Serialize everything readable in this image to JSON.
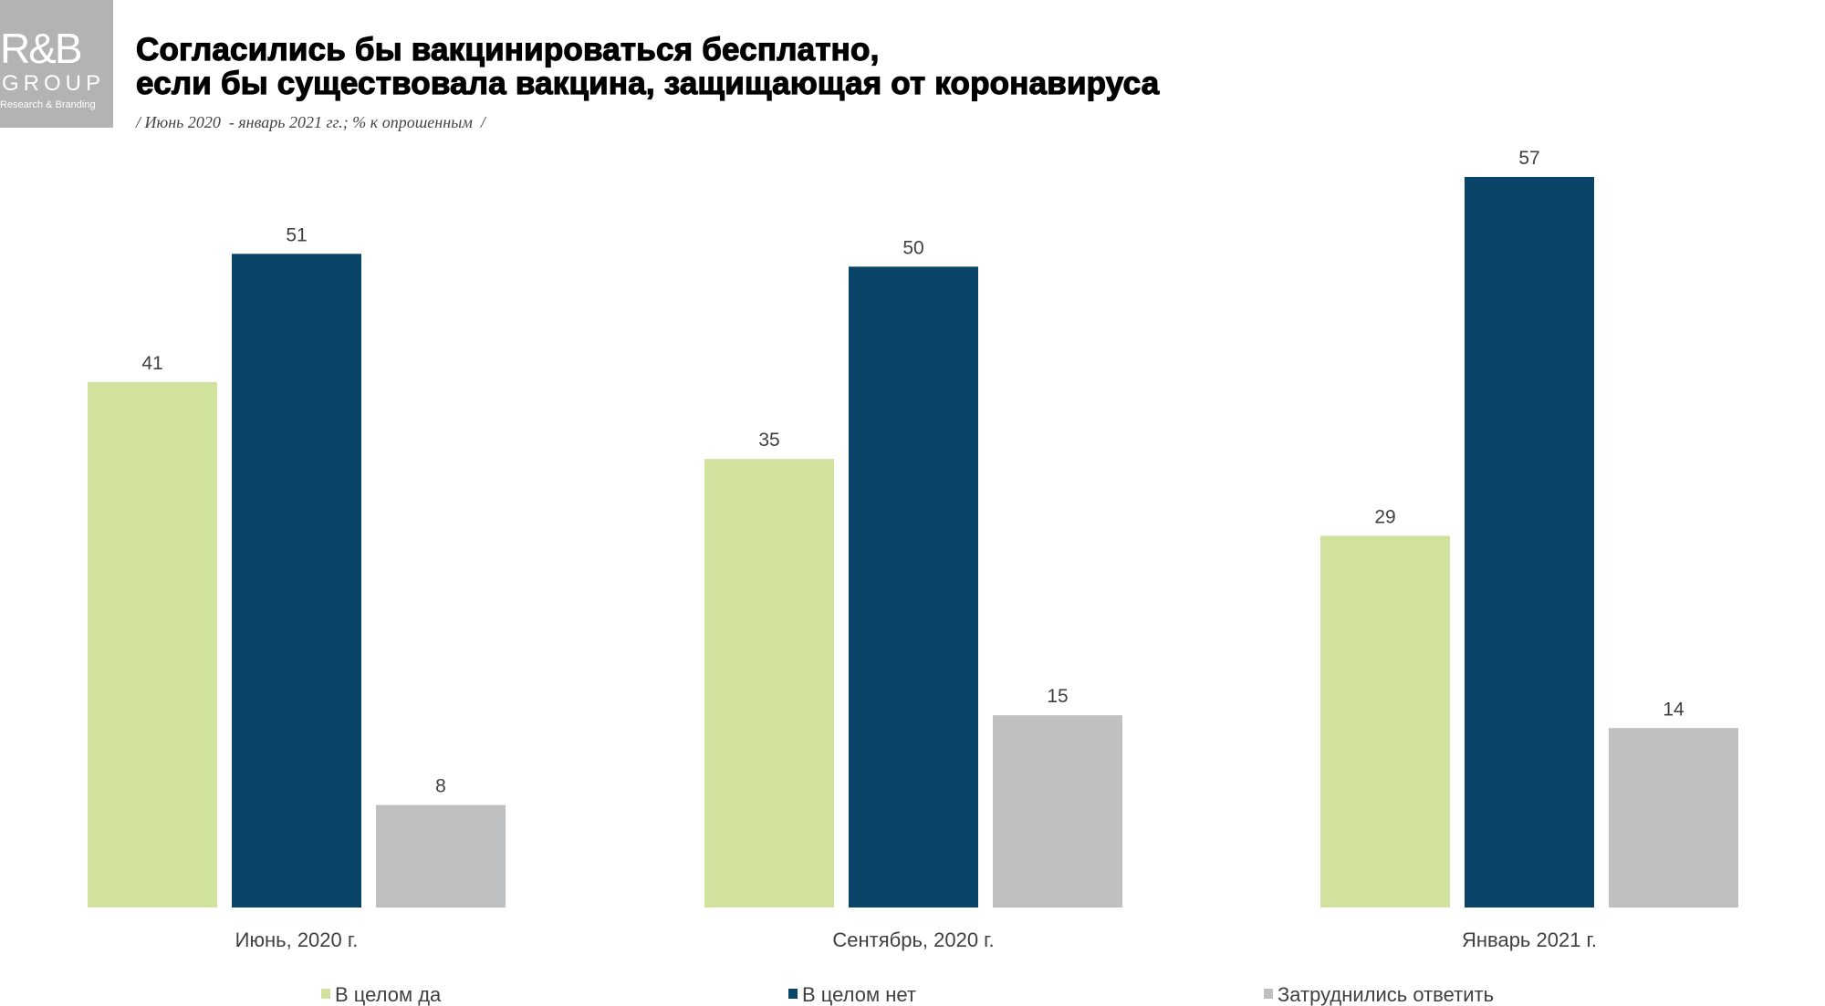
{
  "logo": {
    "line1": "R&B",
    "line2": "GROUP",
    "line3": "Research & Branding"
  },
  "title_line1": "Согласились бы вакцинироваться бесплатно,",
  "title_line2": "если бы существовала вакцина, защищающая от коронавируса",
  "subtitle": "/ Июнь 2020  - январь 2021 гг.; % к опрошенным  /",
  "chart_data": {
    "type": "bar",
    "categories": [
      "Июнь, 2020 г.",
      "Сентябрь, 2020 г.",
      "Январь 2021 г."
    ],
    "series": [
      {
        "name": "В целом да",
        "color": "#d0e29e",
        "values": [
          41,
          35,
          29
        ]
      },
      {
        "name": "В целом нет",
        "color": "#0a4569",
        "values": [
          51,
          50,
          57
        ]
      },
      {
        "name": "Затруднились ответить",
        "color": "#bfc0c2",
        "values": [
          8,
          15,
          14
        ]
      }
    ],
    "ylim": [
      0,
      57
    ],
    "grid": false,
    "legend": "bottom",
    "data_labels": true
  }
}
